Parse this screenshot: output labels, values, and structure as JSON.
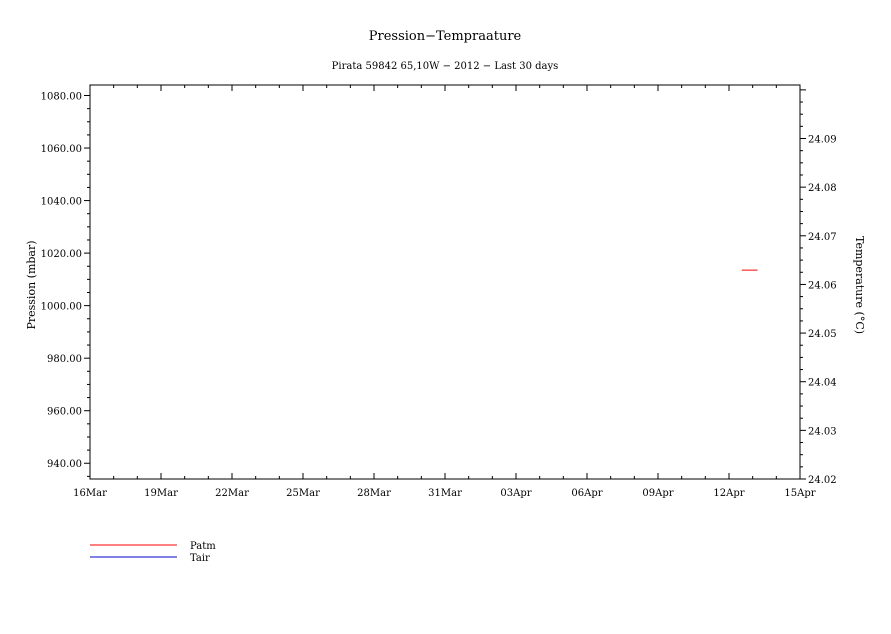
{
  "chart_data": {
    "type": "line",
    "title": "Pression−Tempraature",
    "subtitle": "Pirata 59842 65,10W − 2012 − Last 30 days",
    "xlabel": "",
    "ylabel": "Pression (mbar)",
    "y2label": "Temperature (°C)",
    "x_ticks": [
      "16Mar",
      "19Mar",
      "22Mar",
      "25Mar",
      "28Mar",
      "31Mar",
      "03Apr",
      "06Apr",
      "09Apr",
      "12Apr",
      "15Apr"
    ],
    "xlim": [
      "2012-03-16",
      "2012-04-15"
    ],
    "ylim": [
      934,
      1084
    ],
    "y_ticks": [
      "1080.00",
      "1060.00",
      "1040.00",
      "1020.00",
      "1000.00",
      "980.00",
      "960.00",
      "940.00"
    ],
    "y2lim": [
      24.02,
      24.101
    ],
    "y2_ticks": [
      "24.09",
      "24.08",
      "24.07",
      "24.06",
      "24.05",
      "24.04",
      "24.03",
      "24.02"
    ],
    "grid": false,
    "legend_placement": "bottom-left",
    "series": [
      {
        "name": "Patm",
        "color": "#ff0000",
        "axis": "left",
        "points": [
          {
            "x": "2012-04-12T13:00",
            "y": 1013.5
          },
          {
            "x": "2012-04-13T05:00",
            "y": 1013.5
          }
        ]
      },
      {
        "name": "Tair",
        "color": "#0000cc",
        "axis": "right",
        "points": []
      }
    ]
  }
}
